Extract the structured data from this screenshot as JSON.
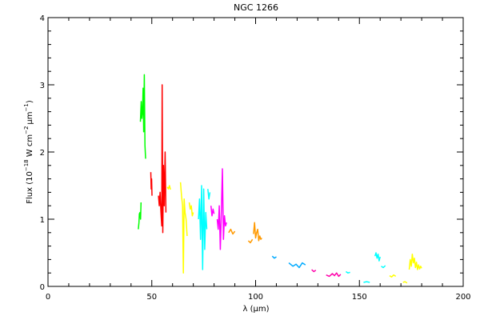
{
  "chart_data": {
    "type": "line",
    "title": "NGC 1266",
    "xlabel_parts": [
      "λ (",
      "μ",
      "m)"
    ],
    "ylabel_parts": [
      "Flux (10",
      "−18",
      " W cm",
      "−2",
      "μm",
      "−1",
      ")"
    ],
    "xlim": [
      0,
      200
    ],
    "ylim": [
      0,
      4
    ],
    "x_ticks": [
      0,
      50,
      100,
      150,
      200
    ],
    "y_ticks": [
      0,
      1,
      2,
      3,
      4
    ],
    "grid": false,
    "legend": "none",
    "series": [
      {
        "color": "#00ff00",
        "x": [
          43.5,
          43.8,
          44.0,
          44.3,
          44.6,
          44.8
        ],
        "y": [
          0.85,
          0.95,
          1.08,
          1.1,
          1.0,
          1.25
        ]
      },
      {
        "color": "#00ff00",
        "x": [
          44.5,
          44.9,
          45.2,
          45.5,
          45.8,
          46.1,
          46.4,
          46.7,
          47.0
        ],
        "y": [
          2.45,
          2.75,
          2.5,
          2.6,
          2.95,
          2.3,
          3.15,
          2.1,
          1.9
        ]
      },
      {
        "color": "#ff0000",
        "x": [
          49.5,
          49.7,
          49.9,
          50.1
        ],
        "y": [
          1.7,
          1.45,
          1.6,
          1.35
        ]
      },
      {
        "color": "#ff0000",
        "x": [
          53.2,
          53.6,
          54.0,
          54.4,
          54.8,
          55.0,
          55.3,
          55.6,
          56.0,
          56.4,
          56.8
        ],
        "y": [
          1.35,
          1.2,
          1.4,
          1.1,
          0.9,
          3.0,
          0.8,
          1.8,
          1.2,
          2.0,
          1.1
        ]
      },
      {
        "color": "#ffff00",
        "x": [
          57.5,
          58.0,
          58.5,
          59.0
        ],
        "y": [
          1.48,
          1.45,
          1.5,
          1.44
        ]
      },
      {
        "color": "#ffff00",
        "x": [
          63.8,
          64.3,
          64.8,
          65.2,
          65.6,
          66.0,
          66.5,
          67.0
        ],
        "y": [
          1.55,
          1.35,
          1.2,
          0.2,
          1.3,
          1.1,
          1.0,
          0.75
        ]
      },
      {
        "color": "#ffff00",
        "x": [
          68.0,
          68.5,
          69.0,
          69.5,
          70.0
        ],
        "y": [
          1.25,
          1.15,
          1.2,
          1.05,
          1.1
        ]
      },
      {
        "color": "#00ffff",
        "x": [
          72.5,
          73.0,
          73.5,
          74.0,
          74.5,
          75.0,
          75.5,
          76.0,
          76.5
        ],
        "y": [
          1.0,
          1.3,
          0.7,
          1.5,
          0.25,
          1.45,
          0.55,
          1.1,
          0.85
        ]
      },
      {
        "color": "#00ffff",
        "x": [
          77.0,
          77.5,
          78.0
        ],
        "y": [
          1.45,
          1.3,
          1.4
        ]
      },
      {
        "color": "#ff00ff",
        "x": [
          78.5,
          79.0,
          79.5,
          80.0
        ],
        "y": [
          1.2,
          1.05,
          1.15,
          1.08
        ]
      },
      {
        "color": "#ff00ff",
        "x": [
          81.5,
          82.0,
          82.5,
          83.0,
          83.5,
          84.0,
          84.5,
          85.0,
          85.5,
          86.0
        ],
        "y": [
          1.0,
          0.85,
          1.2,
          0.55,
          1.1,
          1.75,
          0.7,
          1.05,
          0.9,
          0.95
        ]
      },
      {
        "color": "#ff9900",
        "x": [
          87.0,
          88.0,
          89.0,
          90.0
        ],
        "y": [
          0.8,
          0.85,
          0.78,
          0.82
        ]
      },
      {
        "color": "#ff9900",
        "x": [
          96.5,
          97.5,
          98.5
        ],
        "y": [
          0.68,
          0.65,
          0.7
        ]
      },
      {
        "color": "#ff9900",
        "x": [
          99.0,
          99.5,
          100.0,
          100.5,
          101.0,
          101.5,
          102.0,
          102.5,
          103.0
        ],
        "y": [
          0.78,
          0.95,
          0.72,
          0.8,
          0.85,
          0.68,
          0.75,
          0.7,
          0.72
        ]
      },
      {
        "color": "#00aaff",
        "x": [
          108.0,
          109.0,
          110.0
        ],
        "y": [
          0.45,
          0.42,
          0.44
        ]
      },
      {
        "color": "#00aaff",
        "x": [
          116.0,
          118.0,
          119.5,
          121.0,
          122.5,
          124.0
        ],
        "y": [
          0.35,
          0.3,
          0.33,
          0.28,
          0.35,
          0.32
        ]
      },
      {
        "color": "#ff00aa",
        "x": [
          127.0,
          128.0,
          129.0
        ],
        "y": [
          0.25,
          0.22,
          0.24
        ]
      },
      {
        "color": "#ff00aa",
        "x": [
          134.0,
          135.5,
          137.0,
          138.0,
          139.0,
          140.0,
          141.0
        ],
        "y": [
          0.17,
          0.15,
          0.19,
          0.16,
          0.2,
          0.15,
          0.18
        ]
      },
      {
        "color": "#00ffff",
        "x": [
          143.5,
          144.5,
          145.5
        ],
        "y": [
          0.22,
          0.2,
          0.21
        ]
      },
      {
        "color": "#00ffff",
        "x": [
          152.0,
          153.5,
          155.0
        ],
        "y": [
          0.06,
          0.07,
          0.06
        ]
      },
      {
        "color": "#00ffff",
        "x": [
          157.5,
          158.0,
          158.5,
          159.0,
          159.5,
          160.0
        ],
        "y": [
          0.45,
          0.5,
          0.42,
          0.48,
          0.38,
          0.44
        ]
      },
      {
        "color": "#00ffff",
        "x": [
          160.5,
          161.5,
          162.5
        ],
        "y": [
          0.3,
          0.28,
          0.31
        ]
      },
      {
        "color": "#ffff00",
        "x": [
          164.5,
          165.5,
          166.5,
          167.5
        ],
        "y": [
          0.16,
          0.14,
          0.17,
          0.15
        ]
      },
      {
        "color": "#ffff00",
        "x": [
          171.0,
          172.0,
          173.0
        ],
        "y": [
          0.06,
          0.07,
          0.05
        ]
      },
      {
        "color": "#ffff00",
        "x": [
          174.0,
          174.5,
          175.0,
          175.5,
          176.0,
          176.5,
          177.0,
          177.5,
          178.0,
          178.5,
          179.0,
          179.5,
          180.0
        ],
        "y": [
          0.25,
          0.4,
          0.3,
          0.48,
          0.35,
          0.42,
          0.28,
          0.36,
          0.25,
          0.32,
          0.26,
          0.3,
          0.27
        ]
      }
    ]
  }
}
